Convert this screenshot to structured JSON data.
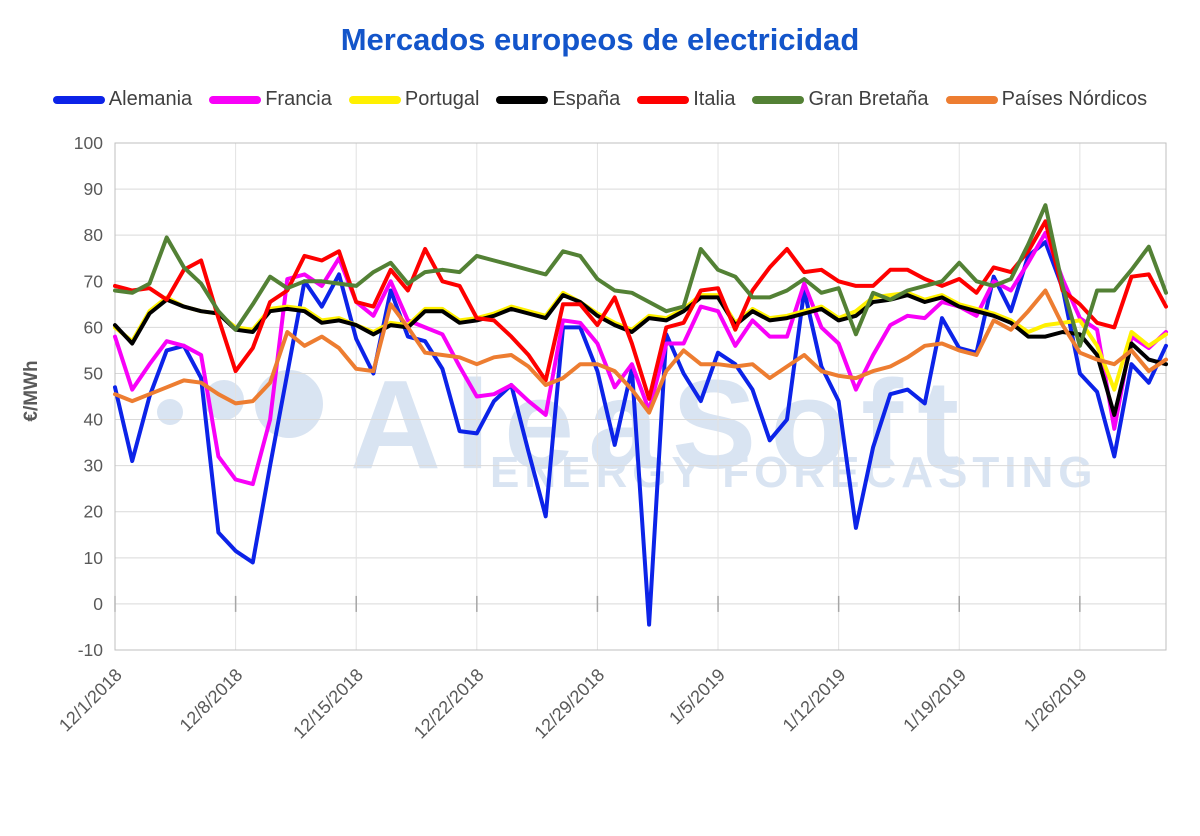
{
  "title": {
    "text": "Mercados europeos de electricidad"
  },
  "watermark": {
    "brand": "AleaSoft",
    "tagline": "ENERGY FORECASTING"
  },
  "y_axis": {
    "title": "€/MWh",
    "min": -10,
    "max": 100,
    "step": 10,
    "tick_labels": [
      "100",
      "90",
      "80",
      "70",
      "60",
      "50",
      "40",
      "30",
      "20",
      "10",
      "0",
      "-10"
    ]
  },
  "x_axis": {
    "tick_labels": [
      "12/1/2018",
      "12/8/2018",
      "12/15/2018",
      "12/22/2018",
      "12/29/2018",
      "1/5/2019",
      "1/12/2019",
      "1/19/2019",
      "1/26/2019"
    ]
  },
  "colors": {
    "grid": "#D9D9D9",
    "grid_vertical": "#E2E2E2",
    "plot_border": "#BFBFBF",
    "axis_text": "#595959",
    "legend_text": "#404040",
    "title": "#1355CA",
    "watermark": "#D9E4F2"
  },
  "chart_data": {
    "type": "line",
    "title": "Mercados europeos de electricidad",
    "xlabel": "",
    "ylabel": "€/MWh",
    "ylim": [
      -10,
      100
    ],
    "grid": true,
    "legend_position": "top",
    "x": [
      "12/1/2018",
      "12/2/2018",
      "12/3/2018",
      "12/4/2018",
      "12/5/2018",
      "12/6/2018",
      "12/7/2018",
      "12/8/2018",
      "12/9/2018",
      "12/10/2018",
      "12/11/2018",
      "12/12/2018",
      "12/13/2018",
      "12/14/2018",
      "12/15/2018",
      "12/16/2018",
      "12/17/2018",
      "12/18/2018",
      "12/19/2018",
      "12/20/2018",
      "12/21/2018",
      "12/22/2018",
      "12/23/2018",
      "12/24/2018",
      "12/25/2018",
      "12/26/2018",
      "12/27/2018",
      "12/28/2018",
      "12/29/2018",
      "12/30/2018",
      "12/31/2018",
      "1/1/2019",
      "1/2/2019",
      "1/3/2019",
      "1/4/2019",
      "1/5/2019",
      "1/6/2019",
      "1/7/2019",
      "1/8/2019",
      "1/9/2019",
      "1/10/2019",
      "1/11/2019",
      "1/12/2019",
      "1/13/2019",
      "1/14/2019",
      "1/15/2019",
      "1/16/2019",
      "1/17/2019",
      "1/18/2019",
      "1/19/2019",
      "1/20/2019",
      "1/21/2019",
      "1/22/2019",
      "1/23/2019",
      "1/24/2019",
      "1/25/2019",
      "1/26/2019",
      "1/27/2019",
      "1/28/2019",
      "1/29/2019",
      "1/30/2019",
      "1/31/2019"
    ],
    "series": [
      {
        "name": "Alemania",
        "color": "#0C23E8",
        "values": [
          47,
          31,
          45,
          55,
          56,
          49,
          15.5,
          11.5,
          9,
          30,
          50,
          70,
          64.5,
          71.5,
          57.5,
          50,
          68,
          58,
          57,
          51,
          37.5,
          37,
          44,
          47.5,
          33,
          19,
          60,
          60,
          50.5,
          34.5,
          51,
          -4.5,
          58.5,
          50,
          44,
          54.5,
          52,
          46.5,
          35.5,
          40,
          68,
          51.5,
          44,
          16.5,
          34,
          45.5,
          46.5,
          43.5,
          62,
          55.5,
          54.5,
          71,
          63.5,
          75.5,
          78.5,
          68.5,
          50,
          46,
          32,
          52,
          48,
          56
        ]
      },
      {
        "name": "Francia",
        "color": "#F801F8",
        "values": [
          58,
          46.5,
          52,
          57,
          56,
          54,
          32,
          27,
          26,
          40,
          70.5,
          71.5,
          69,
          75,
          65.5,
          62.5,
          70,
          61.5,
          60,
          58.5,
          51.5,
          45,
          45.5,
          47.5,
          44,
          41,
          61.5,
          61,
          56.5,
          47,
          52,
          42,
          56.5,
          56.5,
          64.5,
          63.5,
          56,
          61.5,
          58,
          58,
          69.5,
          60,
          56.5,
          46.5,
          54,
          60.5,
          62.5,
          62,
          65.5,
          64.5,
          62.5,
          70,
          68,
          74,
          80.5,
          70.5,
          62,
          59.5,
          38,
          58,
          55.5,
          59
        ]
      },
      {
        "name": "Portugal",
        "color": "#FFF000",
        "values": [
          60,
          57,
          63.5,
          66.5,
          64.5,
          63.5,
          63,
          60,
          59.5,
          64,
          64.5,
          64,
          61.5,
          62,
          60.5,
          59,
          61,
          60.5,
          64,
          64,
          61.5,
          62,
          63,
          64.5,
          63.5,
          62.5,
          67.5,
          65.5,
          63,
          61,
          59.5,
          62.5,
          62,
          64,
          67,
          67,
          61,
          64,
          62,
          62.5,
          63.5,
          64.5,
          62,
          63.5,
          66.5,
          67,
          67.5,
          66,
          67,
          65,
          64,
          63,
          61.5,
          59,
          60.5,
          61,
          61.5,
          56,
          46.5,
          59,
          56,
          58.5
        ]
      },
      {
        "name": "España",
        "color": "#000000",
        "values": [
          60.5,
          56.5,
          63,
          66,
          64.5,
          63.5,
          63,
          59.5,
          59,
          63.5,
          64,
          63.5,
          61,
          61.5,
          60.5,
          58.5,
          60.5,
          60,
          63.5,
          63.5,
          61,
          61.5,
          62.5,
          64,
          63,
          62,
          67,
          65.5,
          62.5,
          60.5,
          59,
          62,
          61.5,
          63.5,
          66.5,
          66.5,
          60.5,
          63.5,
          61.5,
          62,
          63,
          64,
          61.5,
          62.5,
          65.5,
          66,
          67,
          65.5,
          66.5,
          64.5,
          63.5,
          62.5,
          61,
          58,
          58,
          59,
          58.5,
          54,
          41,
          56.5,
          53,
          52
        ]
      },
      {
        "name": "Italia",
        "color": "#FE0000",
        "values": [
          69,
          68,
          68.5,
          66,
          72.5,
          74.5,
          62,
          50.5,
          55.5,
          65.5,
          68,
          75.5,
          74.5,
          76.5,
          65.5,
          64.5,
          72.5,
          68,
          77,
          70,
          69,
          62,
          61.5,
          58,
          54,
          48.5,
          65,
          65,
          60.5,
          66.5,
          56.5,
          44.5,
          60,
          61,
          68,
          68.5,
          59.5,
          68,
          73,
          77,
          72,
          72.5,
          70,
          69,
          69,
          72.5,
          72.5,
          70.5,
          69,
          70.5,
          67.5,
          73,
          72,
          76.5,
          83,
          68,
          65,
          61,
          60,
          71,
          71.5,
          64.5
        ]
      },
      {
        "name": "Gran Bretaña",
        "color": "#538135",
        "values": [
          68,
          67.5,
          69.5,
          79.5,
          73,
          69.5,
          63.5,
          59.5,
          65,
          71,
          68.5,
          70,
          70,
          69.5,
          69,
          72,
          74,
          69.5,
          72,
          72.5,
          72,
          75.5,
          74.5,
          73.5,
          72.5,
          71.5,
          76.5,
          75.5,
          70.5,
          68,
          67.5,
          65.5,
          63.5,
          64.5,
          77,
          72.5,
          71,
          66.5,
          66.5,
          68,
          70.5,
          67.5,
          68.5,
          58.5,
          67.5,
          66,
          68,
          69,
          70,
          74,
          70,
          69,
          70.5,
          78,
          86.5,
          69,
          56,
          68,
          68,
          72.5,
          77.5,
          67.5
        ]
      },
      {
        "name": "Países Nórdicos",
        "color": "#ED7D31",
        "values": [
          45.5,
          44,
          45.5,
          47,
          48.5,
          48,
          45.5,
          43.5,
          44,
          48,
          59,
          56,
          58,
          55.5,
          51,
          50.5,
          65,
          60,
          54.5,
          54,
          53.5,
          52,
          53.5,
          54,
          51.5,
          47.5,
          49,
          52,
          52,
          50.5,
          46.5,
          41.5,
          50.5,
          55,
          52,
          52,
          51.5,
          52,
          49,
          51.5,
          54,
          50.5,
          49.5,
          49,
          50.5,
          51.5,
          53.5,
          56,
          56.5,
          55,
          54,
          61.5,
          59.5,
          63.5,
          68,
          60.5,
          54.5,
          53,
          52,
          55,
          50.5,
          53
        ]
      }
    ]
  }
}
